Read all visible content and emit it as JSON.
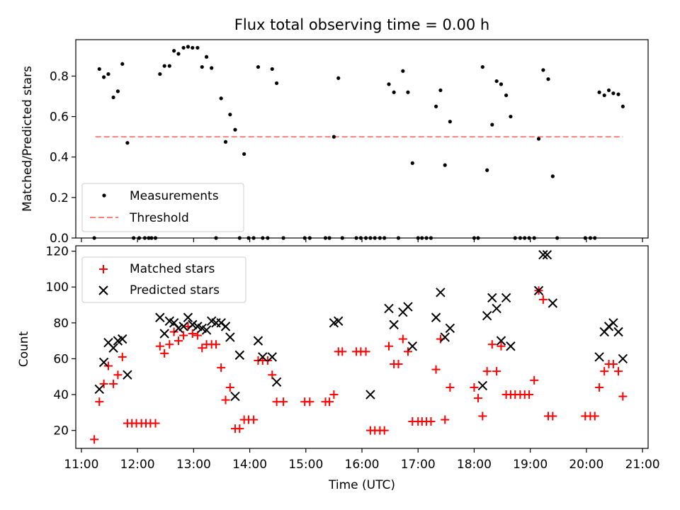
{
  "figure": {
    "title": "Flux total observing time = 0.00 h",
    "xlabel": "Time (UTC)"
  },
  "colors": {
    "measurement": "#000000",
    "threshold": "#ff7f7f",
    "matched": "#ff0000",
    "predicted": "#000000",
    "axes": "#000000",
    "legend_border": "#cccccc"
  },
  "chart_data": [
    {
      "type": "scatter",
      "panel": "top",
      "xlabel": "",
      "ylabel": "Matched/Predicted stars",
      "xlim": [
        10.9,
        21.1
      ],
      "ylim": [
        0,
        0.98
      ],
      "x_ticks": [
        11,
        12,
        13,
        14,
        15,
        16,
        17,
        18,
        19,
        20,
        21
      ],
      "x_tick_labels": [],
      "y_ticks": [
        0.0,
        0.2,
        0.4,
        0.6,
        0.8
      ],
      "y_tick_labels": [
        "0.0",
        "0.2",
        "0.4",
        "0.6",
        "0.8"
      ],
      "legend": {
        "placement": "lower-left",
        "entries": [
          "Measurements",
          "Threshold"
        ]
      },
      "threshold": {
        "name": "Threshold",
        "y": 0.5,
        "x_range": [
          11.25,
          20.65
        ]
      },
      "series": [
        {
          "name": "Measurements",
          "marker": "dot",
          "points": [
            [
              11.23,
              0.0
            ],
            [
              11.32,
              0.835
            ],
            [
              11.4,
              0.795
            ],
            [
              11.48,
              0.81
            ],
            [
              11.57,
              0.695
            ],
            [
              11.65,
              0.725
            ],
            [
              11.73,
              0.86
            ],
            [
              11.82,
              0.47
            ],
            [
              11.93,
              0.0
            ],
            [
              12.03,
              0.0
            ],
            [
              12.13,
              0.0
            ],
            [
              12.2,
              0.0
            ],
            [
              12.25,
              0.0
            ],
            [
              12.32,
              0.0
            ],
            [
              12.4,
              0.81
            ],
            [
              12.48,
              0.85
            ],
            [
              12.57,
              0.85
            ],
            [
              12.65,
              0.925
            ],
            [
              12.73,
              0.91
            ],
            [
              12.82,
              0.94
            ],
            [
              12.9,
              0.945
            ],
            [
              12.98,
              0.94
            ],
            [
              13.07,
              0.94
            ],
            [
              13.15,
              0.845
            ],
            [
              13.23,
              0.895
            ],
            [
              13.32,
              0.84
            ],
            [
              13.4,
              0.0
            ],
            [
              13.49,
              0.69
            ],
            [
              13.57,
              0.475
            ],
            [
              13.65,
              0.61
            ],
            [
              13.74,
              0.535
            ],
            [
              13.82,
              0.0
            ],
            [
              13.9,
              0.415
            ],
            [
              13.98,
              0.0
            ],
            [
              14.07,
              0.0
            ],
            [
              14.15,
              0.845
            ],
            [
              14.23,
              0.0
            ],
            [
              14.32,
              0.0
            ],
            [
              14.4,
              0.835
            ],
            [
              14.48,
              0.765
            ],
            [
              14.6,
              0.0
            ],
            [
              14.98,
              0.0
            ],
            [
              15.07,
              0.0
            ],
            [
              15.35,
              0.0
            ],
            [
              15.42,
              0.0
            ],
            [
              15.5,
              0.5
            ],
            [
              15.58,
              0.79
            ],
            [
              15.65,
              0.0
            ],
            [
              15.9,
              0.0
            ],
            [
              15.98,
              0.0
            ],
            [
              16.07,
              0.0
            ],
            [
              16.15,
              0.0
            ],
            [
              16.23,
              0.0
            ],
            [
              16.32,
              0.0
            ],
            [
              16.4,
              0.0
            ],
            [
              16.48,
              0.76
            ],
            [
              16.57,
              0.72
            ],
            [
              16.65,
              0.0
            ],
            [
              16.73,
              0.825
            ],
            [
              16.82,
              0.72
            ],
            [
              16.9,
              0.37
            ],
            [
              17.0,
              0.0
            ],
            [
              17.07,
              0.0
            ],
            [
              17.15,
              0.0
            ],
            [
              17.23,
              0.0
            ],
            [
              17.32,
              0.65
            ],
            [
              17.4,
              0.73
            ],
            [
              17.48,
              0.36
            ],
            [
              17.57,
              0.575
            ],
            [
              18.0,
              0.0
            ],
            [
              18.07,
              0.0
            ],
            [
              18.15,
              0.845
            ],
            [
              18.23,
              0.335
            ],
            [
              18.32,
              0.56
            ],
            [
              18.4,
              0.775
            ],
            [
              18.48,
              0.76
            ],
            [
              18.57,
              0.705
            ],
            [
              18.65,
              0.6
            ],
            [
              18.73,
              0.0
            ],
            [
              18.82,
              0.0
            ],
            [
              18.9,
              0.0
            ],
            [
              18.98,
              0.0
            ],
            [
              19.07,
              0.0
            ],
            [
              19.15,
              0.49
            ],
            [
              19.23,
              0.83
            ],
            [
              19.32,
              0.785
            ],
            [
              19.4,
              0.305
            ],
            [
              19.48,
              0.0
            ],
            [
              19.98,
              0.0
            ],
            [
              20.07,
              0.0
            ],
            [
              20.15,
              0.0
            ],
            [
              20.23,
              0.72
            ],
            [
              20.32,
              0.705
            ],
            [
              20.4,
              0.73
            ],
            [
              20.48,
              0.715
            ],
            [
              20.57,
              0.71
            ],
            [
              20.65,
              0.65
            ]
          ]
        }
      ]
    },
    {
      "type": "scatter",
      "panel": "bottom",
      "xlabel": "Time (UTC)",
      "ylabel": "Count",
      "xlim": [
        10.9,
        21.1
      ],
      "ylim": [
        10,
        123
      ],
      "x_ticks": [
        11,
        12,
        13,
        14,
        15,
        16,
        17,
        18,
        19,
        20,
        21
      ],
      "x_tick_labels": [
        "11:00",
        "12:00",
        "13:00",
        "14:00",
        "15:00",
        "16:00",
        "17:00",
        "18:00",
        "19:00",
        "20:00",
        "21:00"
      ],
      "y_ticks": [
        20,
        40,
        60,
        80,
        100,
        120
      ],
      "y_tick_labels": [
        "20",
        "40",
        "60",
        "80",
        "100",
        "120"
      ],
      "legend": {
        "placement": "upper-left",
        "entries": [
          "Matched stars",
          "Predicted stars"
        ]
      },
      "series": [
        {
          "name": "Matched stars",
          "marker": "plus",
          "points": [
            [
              11.23,
              15
            ],
            [
              11.32,
              36
            ],
            [
              11.4,
              46
            ],
            [
              11.48,
              56
            ],
            [
              11.57,
              46
            ],
            [
              11.65,
              51
            ],
            [
              11.73,
              61
            ],
            [
              11.82,
              24
            ],
            [
              11.9,
              24
            ],
            [
              11.98,
              24
            ],
            [
              12.07,
              24
            ],
            [
              12.15,
              24
            ],
            [
              12.23,
              24
            ],
            [
              12.32,
              24
            ],
            [
              12.4,
              67
            ],
            [
              12.48,
              63
            ],
            [
              12.57,
              68
            ],
            [
              12.65,
              75
            ],
            [
              12.73,
              70
            ],
            [
              12.82,
              73
            ],
            [
              12.9,
              78
            ],
            [
              12.98,
              74
            ],
            [
              13.07,
              73
            ],
            [
              13.15,
              66
            ],
            [
              13.23,
              68
            ],
            [
              13.32,
              68
            ],
            [
              13.4,
              68
            ],
            [
              13.49,
              55
            ],
            [
              13.57,
              37
            ],
            [
              13.65,
              44
            ],
            [
              13.74,
              21
            ],
            [
              13.82,
              21
            ],
            [
              13.9,
              26
            ],
            [
              13.98,
              26
            ],
            [
              14.07,
              26
            ],
            [
              14.15,
              59
            ],
            [
              14.23,
              59
            ],
            [
              14.32,
              59
            ],
            [
              14.4,
              51
            ],
            [
              14.48,
              36
            ],
            [
              14.6,
              36
            ],
            [
              14.98,
              36
            ],
            [
              15.07,
              36
            ],
            [
              15.35,
              36
            ],
            [
              15.42,
              36
            ],
            [
              15.5,
              40
            ],
            [
              15.58,
              64
            ],
            [
              15.65,
              64
            ],
            [
              15.9,
              64
            ],
            [
              15.98,
              64
            ],
            [
              16.07,
              64
            ],
            [
              16.15,
              20
            ],
            [
              16.23,
              20
            ],
            [
              16.32,
              20
            ],
            [
              16.4,
              20
            ],
            [
              16.48,
              67
            ],
            [
              16.57,
              57
            ],
            [
              16.65,
              57
            ],
            [
              16.73,
              71
            ],
            [
              16.82,
              64
            ],
            [
              16.9,
              25
            ],
            [
              17.0,
              25
            ],
            [
              17.07,
              25
            ],
            [
              17.15,
              25
            ],
            [
              17.23,
              25
            ],
            [
              17.32,
              54
            ],
            [
              17.4,
              71
            ],
            [
              17.48,
              26
            ],
            [
              17.57,
              44
            ],
            [
              18.0,
              44
            ],
            [
              18.07,
              38
            ],
            [
              18.15,
              28
            ],
            [
              18.23,
              53
            ],
            [
              18.32,
              68
            ],
            [
              18.4,
              53
            ],
            [
              18.48,
              67
            ],
            [
              18.57,
              40
            ],
            [
              18.65,
              40
            ],
            [
              18.73,
              40
            ],
            [
              18.82,
              40
            ],
            [
              18.9,
              40
            ],
            [
              18.98,
              40
            ],
            [
              19.07,
              48
            ],
            [
              19.15,
              98
            ],
            [
              19.23,
              93
            ],
            [
              19.32,
              28
            ],
            [
              19.4,
              28
            ],
            [
              19.98,
              28
            ],
            [
              20.07,
              28
            ],
            [
              20.15,
              28
            ],
            [
              20.23,
              44
            ],
            [
              20.32,
              53
            ],
            [
              20.4,
              57
            ],
            [
              20.48,
              57
            ],
            [
              20.57,
              53
            ],
            [
              20.65,
              39
            ]
          ]
        },
        {
          "name": "Predicted stars",
          "marker": "x",
          "points": [
            [
              11.32,
              43
            ],
            [
              11.4,
              58
            ],
            [
              11.48,
              69
            ],
            [
              11.57,
              66
            ],
            [
              11.65,
              70
            ],
            [
              11.73,
              71
            ],
            [
              11.82,
              51
            ],
            [
              12.4,
              83
            ],
            [
              12.48,
              74
            ],
            [
              12.57,
              81
            ],
            [
              12.65,
              80
            ],
            [
              12.73,
              77
            ],
            [
              12.82,
              78
            ],
            [
              12.9,
              83
            ],
            [
              12.98,
              79
            ],
            [
              13.07,
              78
            ],
            [
              13.15,
              77
            ],
            [
              13.23,
              76
            ],
            [
              13.32,
              81
            ],
            [
              13.4,
              80
            ],
            [
              13.49,
              80
            ],
            [
              13.57,
              78
            ],
            [
              13.65,
              72
            ],
            [
              13.74,
              39
            ],
            [
              13.82,
              62
            ],
            [
              14.15,
              70
            ],
            [
              14.23,
              61
            ],
            [
              14.4,
              61
            ],
            [
              14.48,
              47
            ],
            [
              15.5,
              80
            ],
            [
              15.58,
              81
            ],
            [
              16.15,
              40
            ],
            [
              16.48,
              88
            ],
            [
              16.57,
              79
            ],
            [
              16.73,
              86
            ],
            [
              16.82,
              89
            ],
            [
              16.9,
              67
            ],
            [
              17.32,
              83
            ],
            [
              17.4,
              97
            ],
            [
              17.48,
              72
            ],
            [
              17.57,
              77
            ],
            [
              18.15,
              45
            ],
            [
              18.23,
              84
            ],
            [
              18.32,
              94
            ],
            [
              18.4,
              88
            ],
            [
              18.48,
              70
            ],
            [
              18.57,
              94
            ],
            [
              18.65,
              67
            ],
            [
              19.15,
              98
            ],
            [
              19.23,
              118
            ],
            [
              19.3,
              118
            ],
            [
              19.4,
              91
            ],
            [
              20.23,
              61
            ],
            [
              20.32,
              75
            ],
            [
              20.4,
              78
            ],
            [
              20.48,
              80
            ],
            [
              20.57,
              75
            ],
            [
              20.65,
              60
            ]
          ]
        }
      ]
    }
  ]
}
